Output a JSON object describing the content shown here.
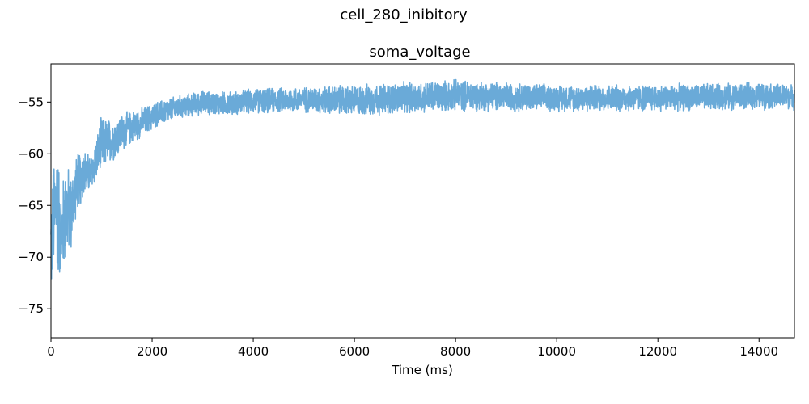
{
  "chart_data": {
    "type": "line",
    "suptitle": "cell_280_inibitory",
    "title": "soma_voltage",
    "xlabel": "Time (ms)",
    "ylabel": "",
    "xlim": [
      0,
      14700
    ],
    "ylim": [
      -77.8,
      -51.3
    ],
    "xticks": [
      0,
      2000,
      4000,
      6000,
      8000,
      10000,
      12000,
      14000
    ],
    "yticks": [
      -75,
      -70,
      -65,
      -60,
      -55
    ],
    "grid": false,
    "line_color": "#6aaad8",
    "series": [
      {
        "name": "",
        "approximate_trace": true,
        "envelope": {
          "t": [
            0,
            100,
            200,
            300,
            400,
            500,
            600,
            800,
            1000,
            1200,
            1500,
            1800,
            2100,
            2500,
            3000,
            3500,
            4000,
            5000,
            6000,
            8000,
            10000,
            12000,
            14000,
            14700
          ],
          "low": [
            -74.5,
            -72,
            -72.8,
            -71,
            -69.8,
            -66,
            -65,
            -63.6,
            -62,
            -61,
            -59.5,
            -58.5,
            -57.5,
            -56.8,
            -56.3,
            -56.4,
            -56.2,
            -56.1,
            -56.5,
            -56,
            -56,
            -56,
            -55.8,
            -55.8
          ],
          "high": [
            -63.5,
            -57,
            -63,
            -60,
            -61.7,
            -60,
            -59,
            -60,
            -56.2,
            -56.5,
            -55.8,
            -55.4,
            -54.8,
            -54.3,
            -53.8,
            -53.9,
            -53.6,
            -53.4,
            -53.2,
            -52.7,
            -53.2,
            -53.2,
            -53,
            -53.2
          ]
        }
      }
    ]
  }
}
